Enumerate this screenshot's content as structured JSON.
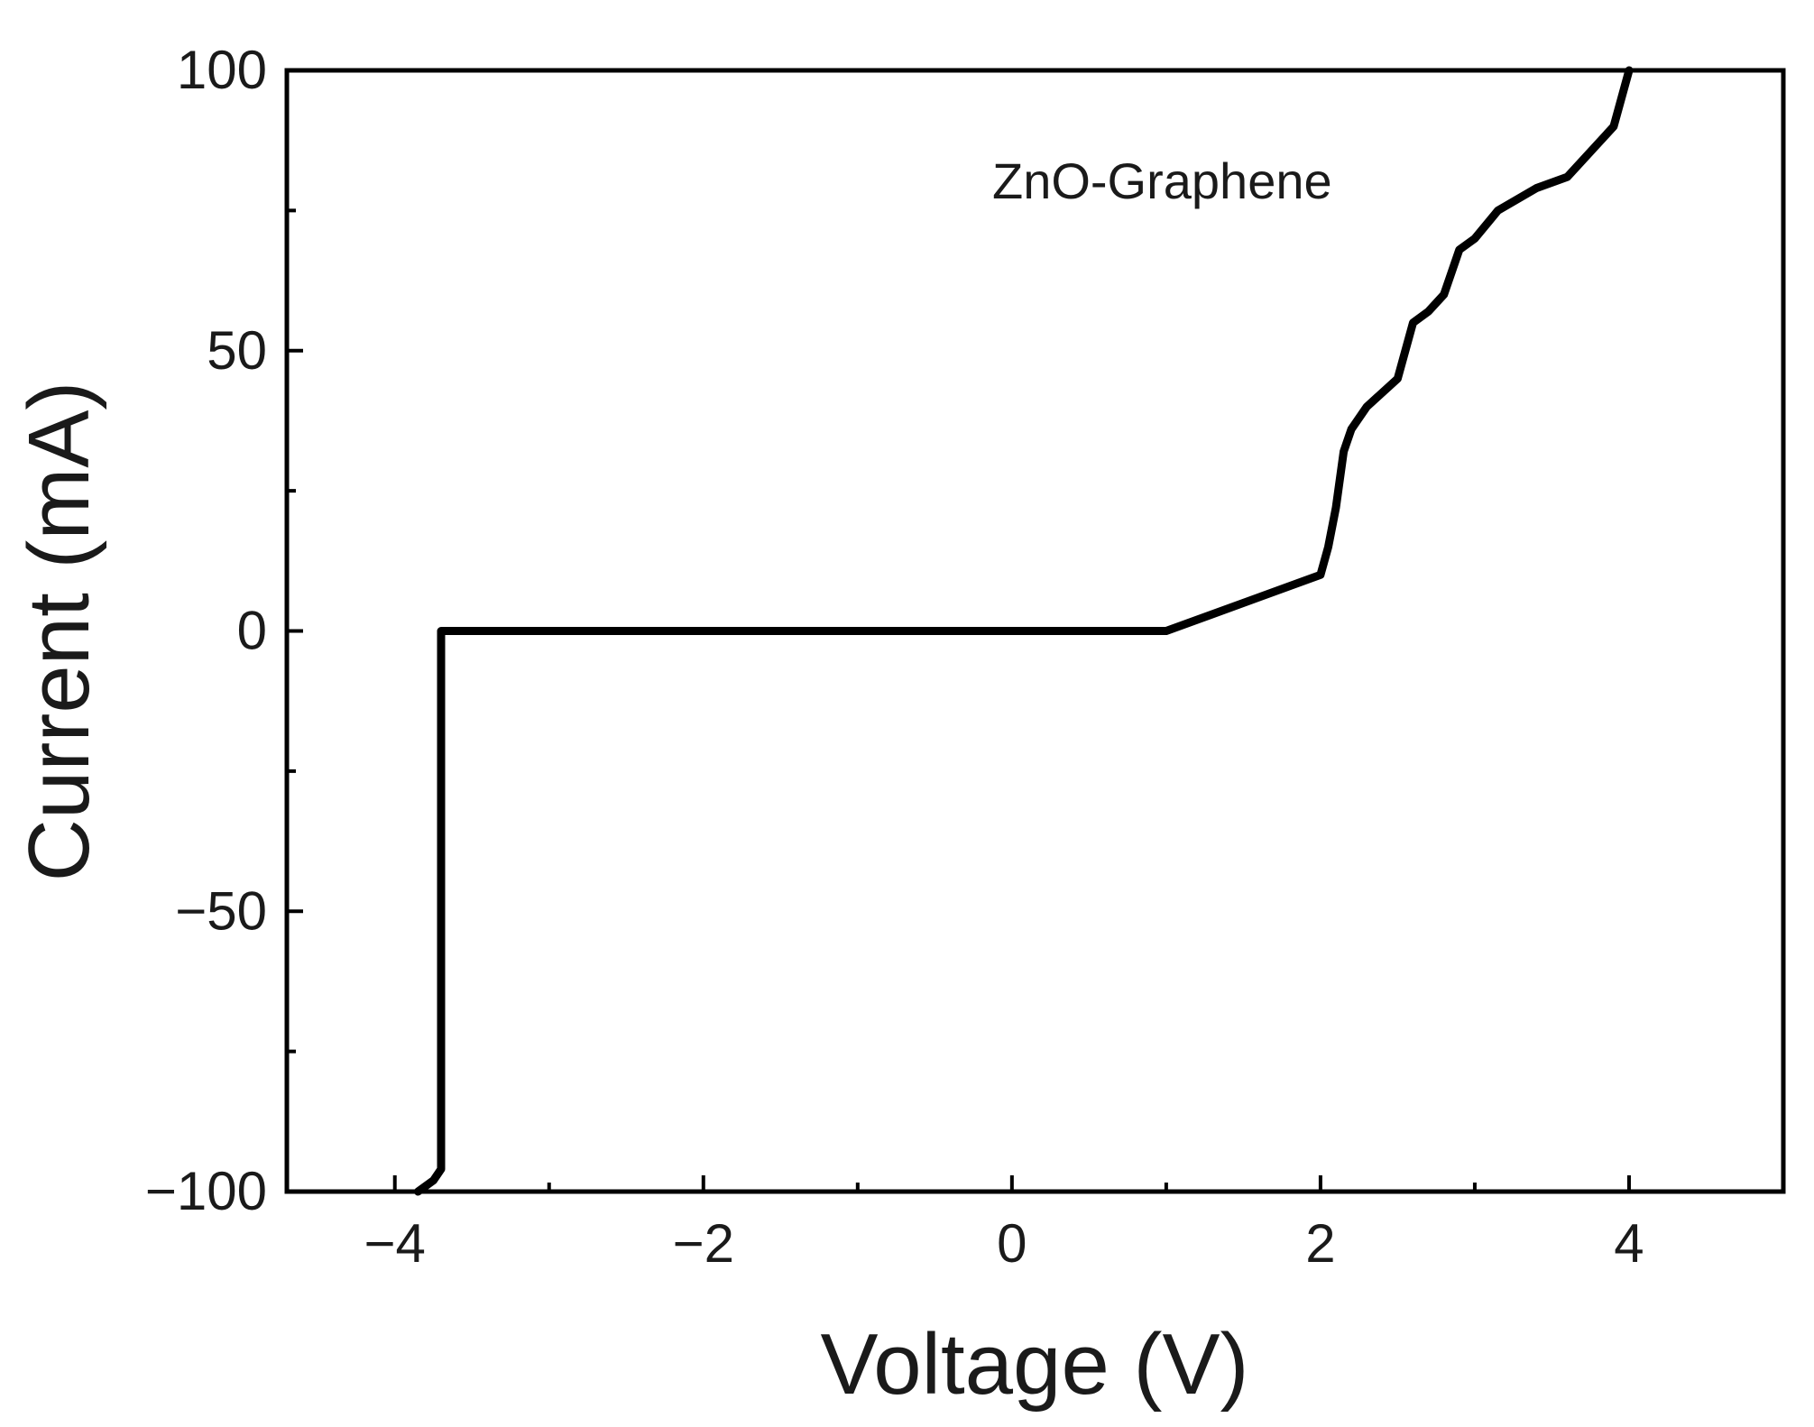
{
  "chart_data": {
    "type": "line",
    "title": "",
    "xlabel": "Voltage (V)",
    "ylabel": "Current (mA)",
    "xlim": [
      -4.7,
      5.0
    ],
    "ylim": [
      -100,
      100
    ],
    "x_ticks": [
      -4,
      -2,
      0,
      2,
      4
    ],
    "x_tick_labels": [
      "−4",
      "−2",
      "0",
      "2",
      "4"
    ],
    "y_ticks": [
      -100,
      -50,
      0,
      50,
      100
    ],
    "y_tick_labels": [
      "−100",
      "−50",
      "0",
      "50",
      "100"
    ],
    "grid": false,
    "annotation": "ZnO-Graphene",
    "line_color": "#000000",
    "series": [
      {
        "x": [
          -3.85,
          -3.75,
          -3.7,
          -3.7,
          1.0,
          1.3,
          1.6,
          2.0,
          2.05,
          2.1,
          2.15,
          2.2,
          2.3,
          2.5,
          2.6,
          2.7,
          2.8,
          2.9,
          3.0,
          3.15,
          3.4,
          3.6,
          3.9,
          4.0
        ],
        "y": [
          -100,
          -98,
          -96,
          0,
          0,
          3,
          6,
          10,
          15,
          22,
          32,
          36,
          40,
          45,
          55,
          57,
          60,
          68,
          70,
          75,
          79,
          81,
          90,
          100
        ]
      }
    ]
  }
}
